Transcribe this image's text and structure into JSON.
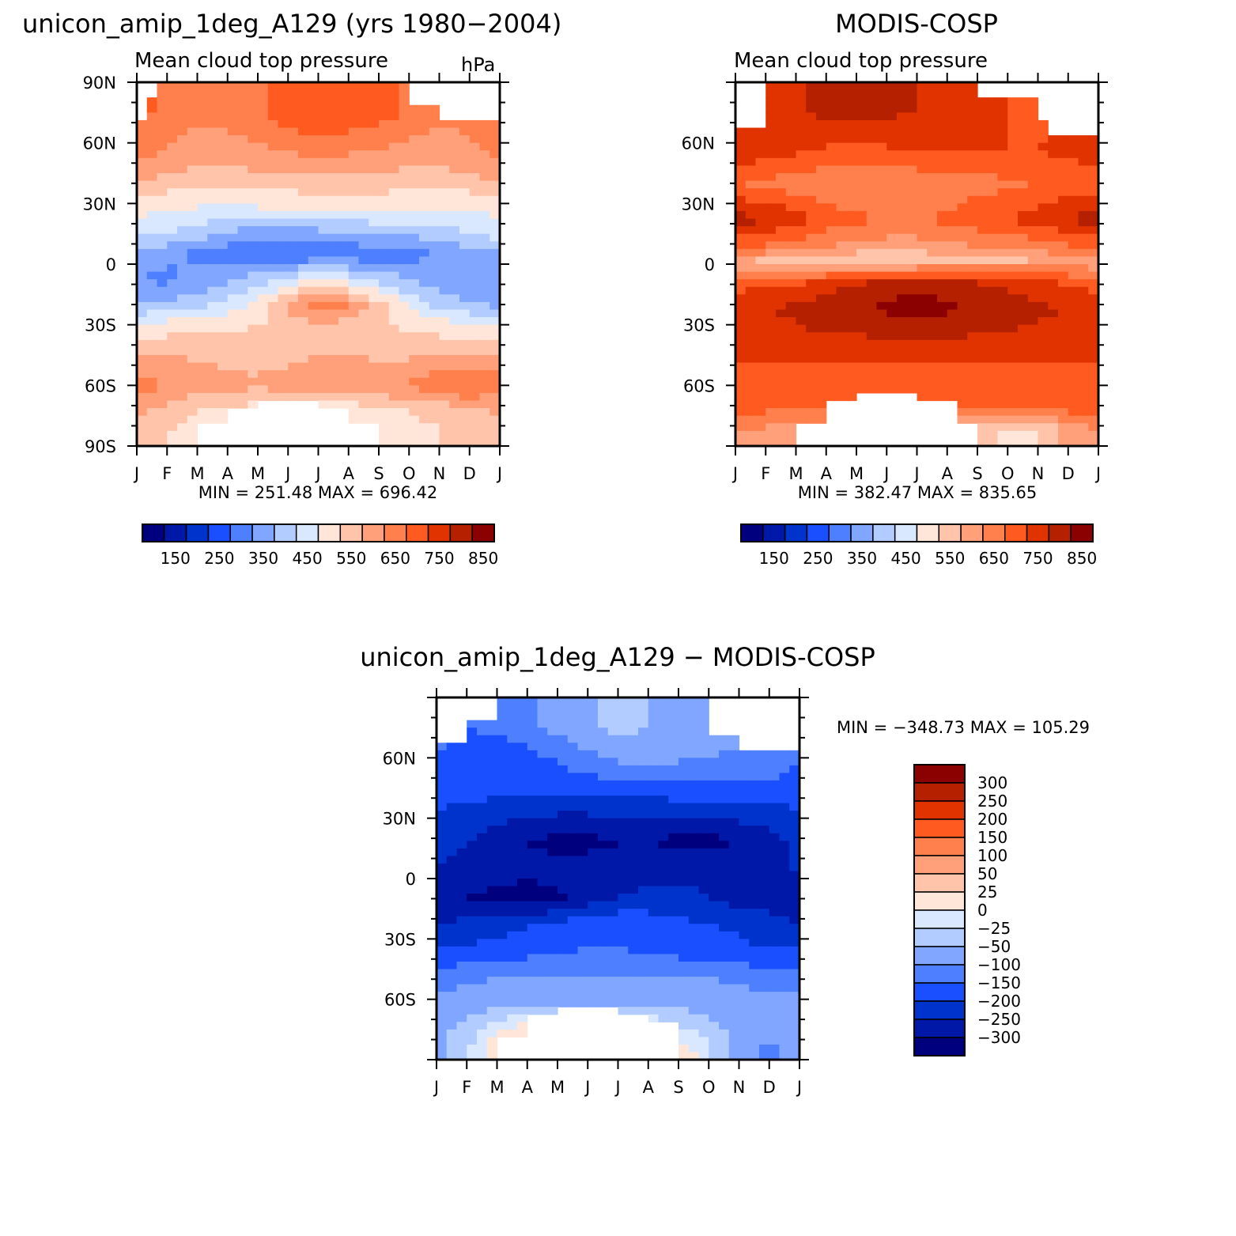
{
  "chart_data": [
    {
      "type": "heatmap",
      "title": "unicon_amip_1deg_A129 (yrs 1980-2004)",
      "subtitle": "Mean cloud top pressure",
      "units": "hPa",
      "stats": "MIN = 251.48 MAX = 696.42",
      "x_tick_labels": [
        "J",
        "F",
        "M",
        "A",
        "M",
        "J",
        "J",
        "A",
        "S",
        "O",
        "N",
        "D",
        "J"
      ],
      "y_tick_labels": [
        {
          "lat": 90,
          "label": "90N"
        },
        {
          "lat": 60,
          "label": "60N"
        },
        {
          "lat": 30,
          "label": "30N"
        },
        {
          "lat": 0,
          "label": "0"
        },
        {
          "lat": -30,
          "label": "30S"
        },
        {
          "lat": -60,
          "label": "60S"
        },
        {
          "lat": -90,
          "label": "90S"
        }
      ],
      "ylim": [
        -90,
        90
      ],
      "xlim": [
        0,
        12
      ],
      "colorbar": {
        "orientation": "horizontal",
        "labels": [
          "150",
          "250",
          "350",
          "450",
          "550",
          "650",
          "750",
          "850"
        ]
      },
      "lat_bands": [
        75,
        50,
        28,
        15,
        5,
        -8,
        -20,
        -30,
        -45,
        -60,
        -72,
        -82
      ],
      "values": [
        [
          660,
          640,
          610,
          620,
          640,
          680,
          700,
          690,
          680,
          640,
          610,
          620,
          660
        ],
        [
          600,
          580,
          560,
          560,
          570,
          580,
          590,
          580,
          570,
          560,
          560,
          580,
          600
        ],
        [
          470,
          460,
          450,
          440,
          450,
          450,
          460,
          470,
          470,
          460,
          450,
          460,
          470
        ],
        [
          420,
          400,
          380,
          340,
          320,
          320,
          330,
          340,
          350,
          360,
          380,
          400,
          420
        ],
        [
          330,
          310,
          290,
          270,
          260,
          255,
          255,
          260,
          270,
          280,
          300,
          320,
          330
        ],
        [
          300,
          290,
          310,
          340,
          380,
          420,
          450,
          430,
          390,
          350,
          320,
          300,
          300
        ],
        [
          340,
          360,
          380,
          420,
          470,
          560,
          640,
          600,
          520,
          440,
          380,
          350,
          340
        ],
        [
          460,
          470,
          480,
          490,
          500,
          520,
          540,
          530,
          510,
          490,
          470,
          460,
          460
        ],
        [
          560,
          550,
          540,
          530,
          530,
          540,
          550,
          550,
          540,
          540,
          550,
          560,
          560
        ],
        [
          620,
          600,
          580,
          570,
          560,
          570,
          580,
          590,
          600,
          610,
          640,
          660,
          620
        ],
        [
          560,
          540,
          500,
          490,
          480,
          470,
          460,
          470,
          480,
          500,
          520,
          540,
          560
        ],
        [
          520,
          500,
          480,
          460,
          450,
          440,
          440,
          450,
          460,
          480,
          500,
          510,
          520
        ]
      ],
      "missing": [
        {
          "lat_from": 82,
          "lat_to": 90,
          "x_from": 0,
          "x_to": 0.7
        },
        {
          "lat_from": 72,
          "lat_to": 90,
          "x_from": 0,
          "x_to": 0.3
        },
        {
          "lat_from": 78,
          "lat_to": 90,
          "x_from": 9,
          "x_to": 12
        },
        {
          "lat_from": 70,
          "lat_to": 90,
          "x_from": 10,
          "x_to": 12
        },
        {
          "lat_from": -90,
          "lat_to": -68,
          "x_from": 4,
          "x_to": 6
        },
        {
          "lat_from": -90,
          "lat_to": -72,
          "x_from": 3,
          "x_to": 7
        },
        {
          "lat_from": -90,
          "lat_to": -80,
          "x_from": 2,
          "x_to": 8
        },
        {
          "lat_from": -90,
          "lat_to": -86,
          "x_from": 2,
          "x_to": 8.1
        }
      ]
    },
    {
      "type": "heatmap",
      "title": "MODIS-COSP",
      "subtitle": "Mean cloud top pressure",
      "units": "",
      "stats": "MIN = 382.47 MAX = 835.65",
      "x_tick_labels": [
        "J",
        "F",
        "M",
        "A",
        "M",
        "J",
        "J",
        "A",
        "S",
        "O",
        "N",
        "D",
        "J"
      ],
      "y_tick_labels": [
        {
          "lat": 60,
          "label": "60N"
        },
        {
          "lat": 30,
          "label": "30N"
        },
        {
          "lat": 0,
          "label": "0"
        },
        {
          "lat": -30,
          "label": "30S"
        },
        {
          "lat": -60,
          "label": "60S"
        }
      ],
      "ylim": [
        -90,
        90
      ],
      "xlim": [
        0,
        12
      ],
      "colorbar": {
        "orientation": "horizontal",
        "labels": [
          "150",
          "250",
          "350",
          "450",
          "550",
          "650",
          "750",
          "850"
        ]
      },
      "lat_bands": [
        75,
        55,
        40,
        22,
        8,
        2,
        -10,
        -22,
        -35,
        -50,
        -70,
        -82
      ],
      "values": [
        [
          700,
          720,
          740,
          760,
          760,
          760,
          750,
          740,
          720,
          700,
          690,
          700,
          700
        ],
        [
          730,
          720,
          700,
          690,
          680,
          690,
          700,
          700,
          700,
          700,
          700,
          710,
          730
        ],
        [
          650,
          640,
          620,
          610,
          600,
          600,
          610,
          620,
          630,
          640,
          650,
          660,
          650
        ],
        [
          770,
          760,
          720,
          680,
          660,
          650,
          650,
          660,
          680,
          700,
          720,
          760,
          770
        ],
        [
          650,
          640,
          620,
          600,
          580,
          570,
          570,
          580,
          600,
          610,
          620,
          640,
          650
        ],
        [
          560,
          540,
          520,
          510,
          500,
          500,
          510,
          520,
          530,
          540,
          550,
          560,
          560
        ],
        [
          680,
          690,
          700,
          730,
          760,
          780,
          790,
          780,
          760,
          740,
          720,
          700,
          680
        ],
        [
          740,
          750,
          760,
          780,
          790,
          810,
          830,
          810,
          790,
          770,
          760,
          750,
          740
        ],
        [
          740,
          740,
          740,
          750,
          750,
          760,
          760,
          760,
          750,
          750,
          740,
          740,
          740
        ],
        [
          700,
          700,
          700,
          700,
          700,
          700,
          700,
          700,
          700,
          700,
          700,
          700,
          700
        ],
        [
          680,
          670,
          660,
          660,
          660,
          650,
          650,
          650,
          660,
          670,
          680,
          680,
          680
        ],
        [
          600,
          590,
          580,
          570,
          560,
          550,
          540,
          540,
          520,
          480,
          500,
          560,
          600
        ]
      ],
      "missing": [
        {
          "lat_from": 75,
          "lat_to": 90,
          "x_from": 0,
          "x_to": 1
        },
        {
          "lat_from": 68,
          "lat_to": 90,
          "x_from": 0,
          "x_to": 0.9
        },
        {
          "lat_from": 82,
          "lat_to": 90,
          "x_from": 8,
          "x_to": 12
        },
        {
          "lat_from": 70,
          "lat_to": 90,
          "x_from": 10,
          "x_to": 12
        },
        {
          "lat_from": 64,
          "lat_to": 90,
          "x_from": 10.3,
          "x_to": 12
        },
        {
          "lat_from": -90,
          "lat_to": -62,
          "x_from": 4,
          "x_to": 6
        },
        {
          "lat_from": -90,
          "lat_to": -66,
          "x_from": 3,
          "x_to": 7.3
        },
        {
          "lat_from": -90,
          "lat_to": -71,
          "x_from": 3,
          "x_to": 7.3
        },
        {
          "lat_from": -90,
          "lat_to": -77,
          "x_from": 2,
          "x_to": 8
        },
        {
          "lat_from": -90,
          "lat_to": -82,
          "x_from": 2,
          "x_to": 8
        }
      ]
    },
    {
      "type": "heatmap",
      "title": "unicon_amip_1deg_A129 - MODIS-COSP",
      "stats": "MIN = -348.73 MAX = 105.29",
      "x_tick_labels": [
        "J",
        "F",
        "M",
        "A",
        "M",
        "J",
        "J",
        "A",
        "S",
        "O",
        "N",
        "D",
        "J"
      ],
      "y_tick_labels": [
        {
          "lat": 60,
          "label": "60N"
        },
        {
          "lat": 30,
          "label": "30N"
        },
        {
          "lat": 0,
          "label": "0"
        },
        {
          "lat": -30,
          "label": "30S"
        },
        {
          "lat": -60,
          "label": "60S"
        }
      ],
      "ylim": [
        -90,
        90
      ],
      "xlim": [
        0,
        12
      ],
      "colorbar": {
        "orientation": "vertical",
        "labels": [
          "300",
          "250",
          "200",
          "150",
          "100",
          "50",
          "25",
          "0",
          "-25",
          "-50",
          "-100",
          "-150",
          "-200",
          "-250",
          "-300"
        ]
      },
      "lat_bands": [
        75,
        60,
        45,
        30,
        18,
        5,
        -10,
        -22,
        -35,
        -50,
        -62,
        -75,
        -85
      ],
      "values": [
        [
          -130,
          -150,
          -140,
          -110,
          -90,
          -60,
          -40,
          -50,
          -60,
          -70,
          -80,
          -100,
          -130
        ],
        [
          -150,
          -180,
          -190,
          -170,
          -140,
          -110,
          -90,
          -80,
          -90,
          -100,
          -110,
          -120,
          -150
        ],
        [
          -160,
          -170,
          -180,
          -190,
          -190,
          -180,
          -170,
          -170,
          -160,
          -160,
          -160,
          -160,
          -160
        ],
        [
          -220,
          -230,
          -240,
          -250,
          -260,
          -260,
          -260,
          -260,
          -260,
          -250,
          -240,
          -230,
          -220
        ],
        [
          -240,
          -250,
          -270,
          -300,
          -320,
          -320,
          -300,
          -300,
          -320,
          -320,
          -300,
          -270,
          -240
        ],
        [
          -250,
          -260,
          -270,
          -280,
          -280,
          -270,
          -270,
          -260,
          -260,
          -260,
          -260,
          -250,
          -250
        ],
        [
          -280,
          -300,
          -320,
          -330,
          -310,
          -280,
          -250,
          -240,
          -240,
          -250,
          -270,
          -280,
          -280
        ],
        [
          -250,
          -240,
          -230,
          -210,
          -190,
          -170,
          -160,
          -170,
          -190,
          -200,
          -210,
          -230,
          -250
        ],
        [
          -200,
          -190,
          -180,
          -170,
          -160,
          -150,
          -150,
          -160,
          -170,
          -180,
          -190,
          -200,
          -200
        ],
        [
          -120,
          -110,
          -100,
          -100,
          -90,
          -90,
          -90,
          -100,
          -100,
          -100,
          -110,
          -120,
          -120
        ],
        [
          -80,
          -70,
          -60,
          -60,
          -60,
          -60,
          -60,
          -60,
          -60,
          -60,
          -70,
          -80,
          -80
        ],
        [
          -60,
          -40,
          -10,
          20,
          30,
          30,
          20,
          10,
          -20,
          -40,
          -60,
          -80,
          -60
        ],
        [
          -60,
          -30,
          20,
          40,
          60,
          60,
          40,
          30,
          20,
          -20,
          -80,
          -120,
          -60
        ]
      ],
      "missing": [
        {
          "lat_from": 68,
          "lat_to": 90,
          "x_from": 0,
          "x_to": 1
        },
        {
          "lat_from": 78,
          "lat_to": 90,
          "x_from": 0,
          "x_to": 2
        },
        {
          "lat_from": 84,
          "lat_to": 90,
          "x_from": 0,
          "x_to": 2
        },
        {
          "lat_from": 80,
          "lat_to": 90,
          "x_from": 9,
          "x_to": 12
        },
        {
          "lat_from": 70,
          "lat_to": 90,
          "x_from": 9,
          "x_to": 10
        },
        {
          "lat_from": 64,
          "lat_to": 90,
          "x_from": 10,
          "x_to": 12
        },
        {
          "lat_from": -90,
          "lat_to": -62,
          "x_from": 4,
          "x_to": 6
        },
        {
          "lat_from": -90,
          "lat_to": -66,
          "x_from": 3,
          "x_to": 7
        },
        {
          "lat_from": -90,
          "lat_to": -72,
          "x_from": 3,
          "x_to": 8
        },
        {
          "lat_from": -90,
          "lat_to": -80,
          "x_from": 2,
          "x_to": 8
        }
      ]
    }
  ],
  "palettes": {
    "absolute": [
      "#00007f",
      "#0018a8",
      "#0033cc",
      "#1a4fff",
      "#4d7fff",
      "#80a6ff",
      "#b3ccff",
      "#d9e8ff",
      "#ffe6d9",
      "#ffc4aa",
      "#ffa07a",
      "#ff7f4d",
      "#ff5a20",
      "#e03300",
      "#b42000",
      "#8b0000"
    ],
    "difference": [
      "#00007f",
      "#0018a8",
      "#0033cc",
      "#1a4fff",
      "#4d7fff",
      "#80a6ff",
      "#b3ccff",
      "#d9e8ff",
      "#ffe6d9",
      "#ffc4aa",
      "#ffa07a",
      "#ff7f4d",
      "#ff5a20",
      "#e03300",
      "#b42000",
      "#8b0000"
    ]
  },
  "levels": {
    "absolute": [
      100,
      150,
      200,
      250,
      300,
      350,
      400,
      450,
      500,
      550,
      600,
      650,
      700,
      750,
      800,
      850
    ],
    "difference": [
      -300,
      -250,
      -200,
      -150,
      -100,
      -50,
      -25,
      0,
      25,
      50,
      100,
      150,
      200,
      250,
      300
    ]
  }
}
